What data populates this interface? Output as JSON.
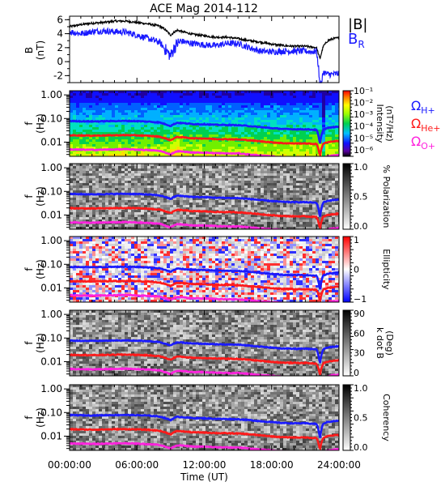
{
  "chart_data": [
    {
      "type": "line",
      "title": "ACE Mag 2014-112",
      "ylabel": "B",
      "yunit": "(nT)",
      "ylim": [
        -3,
        6.5
      ],
      "yticks": [
        "6",
        "4",
        "2",
        "0",
        "-2"
      ],
      "series": [
        {
          "name": "|B|",
          "color": "#000000",
          "x": [
            0,
            1,
            2,
            3,
            4,
            5,
            6,
            7,
            8,
            8.5,
            9,
            9.3,
            9.6,
            10,
            11,
            12,
            13,
            14,
            15,
            16,
            17,
            18,
            19,
            20,
            21,
            21.5,
            22,
            22.3,
            22.6,
            23,
            23.5,
            24
          ],
          "y": [
            5.0,
            5.3,
            5.5,
            5.6,
            5.8,
            5.8,
            5.6,
            5.4,
            5.1,
            4.6,
            3.8,
            4.2,
            4.5,
            4.3,
            3.9,
            3.7,
            3.5,
            3.5,
            3.3,
            3.0,
            2.8,
            2.5,
            2.3,
            2.2,
            2.2,
            2.1,
            2.0,
            0.4,
            2.2,
            3.0,
            3.3,
            3.4
          ]
        },
        {
          "name": "B_R",
          "color": "#1a1aff",
          "x": [
            0,
            1,
            2,
            3,
            4,
            5,
            6,
            7,
            8,
            8.5,
            9,
            9.3,
            9.6,
            10,
            11,
            12,
            13,
            14,
            15,
            16,
            17,
            18,
            19,
            20,
            21,
            21.5,
            22,
            22.3,
            22.6,
            23,
            23.5,
            24
          ],
          "y": [
            4.3,
            4.0,
            4.3,
            4.4,
            4.3,
            4.2,
            3.8,
            3.3,
            2.8,
            1.8,
            0.8,
            1.9,
            2.6,
            2.9,
            2.6,
            2.4,
            2.3,
            2.6,
            2.6,
            2.0,
            1.5,
            1.4,
            1.5,
            1.5,
            1.5,
            1.4,
            1.5,
            -2.5,
            -1.5,
            -1.8,
            -1.8,
            -1.7
          ]
        }
      ]
    },
    {
      "type": "heatmap",
      "ylabel": "f",
      "yunit": "(Hz)",
      "yticks": [
        "1.00",
        "0.10",
        "0.01"
      ],
      "colorbar": {
        "label": "Intensity",
        "unit": "(nT²/Hz)",
        "scale": "log",
        "ticks": [
          "10⁻¹",
          "10⁻²",
          "10⁻³",
          "10⁻⁴",
          "10⁻⁵",
          "10⁻⁶"
        ]
      }
    },
    {
      "type": "heatmap",
      "ylabel": "f",
      "yunit": "(Hz)",
      "yticks": [
        "1.00",
        "0.10",
        "0.01"
      ],
      "colorbar": {
        "label": "% Polarization",
        "unit": "",
        "ticks": [
          "1.0",
          "0.5",
          "0.0"
        ]
      }
    },
    {
      "type": "heatmap",
      "ylabel": "f",
      "yunit": "(Hz)",
      "yticks": [
        "1.00",
        "0.10",
        "0.01"
      ],
      "colorbar": {
        "label": "Ellipticity",
        "unit": "",
        "ticks": [
          "1",
          "0",
          "−1"
        ]
      }
    },
    {
      "type": "heatmap",
      "ylabel": "f",
      "yunit": "(Hz)",
      "yticks": [
        "1.00",
        "0.10",
        "0.01"
      ],
      "colorbar": {
        "label": "k dot B",
        "unit": "(Deg)",
        "ticks": [
          "90",
          "60",
          "30",
          "0"
        ]
      }
    },
    {
      "type": "heatmap",
      "ylabel": "f",
      "yunit": "(Hz)",
      "yticks": [
        "1.00",
        "0.10",
        "0.01"
      ],
      "colorbar": {
        "label": "Coherency",
        "unit": "",
        "ticks": [
          "1.0",
          "0.5",
          "0.0"
        ]
      }
    }
  ],
  "legend": {
    "top": [
      {
        "label": "|B|",
        "sub": "",
        "color": "#000000"
      },
      {
        "label": "B",
        "sub": "R",
        "color": "#1a1aff"
      }
    ],
    "gyro": [
      {
        "label": "Ω",
        "sub": "H+",
        "color": "#1a1aff"
      },
      {
        "label": "Ω",
        "sub": "He+",
        "color": "#ff1a1a"
      },
      {
        "label": "Ω",
        "sub": "O+",
        "color": "#ff22dd"
      }
    ]
  },
  "gyrofrequency_lines": {
    "x": [
      0,
      2,
      4,
      5,
      6,
      7,
      8,
      8.5,
      9,
      9.3,
      9.6,
      10,
      11,
      12,
      13,
      14,
      15,
      16,
      17,
      18,
      19,
      20,
      21,
      21.5,
      22,
      22.3,
      22.6,
      23,
      23.5,
      24
    ],
    "H+": [
      0.078,
      0.075,
      0.078,
      0.079,
      0.077,
      0.074,
      0.068,
      0.058,
      0.048,
      0.058,
      0.066,
      0.064,
      0.058,
      0.057,
      0.054,
      0.053,
      0.052,
      0.048,
      0.043,
      0.039,
      0.036,
      0.035,
      0.035,
      0.034,
      0.033,
      0.007,
      0.034,
      0.04,
      0.043,
      0.045
    ],
    "He+": [
      0.0195,
      0.0188,
      0.0195,
      0.0198,
      0.0193,
      0.0185,
      0.017,
      0.0145,
      0.012,
      0.0145,
      0.0165,
      0.016,
      0.0145,
      0.0143,
      0.0135,
      0.0133,
      0.013,
      0.012,
      0.0108,
      0.0098,
      0.009,
      0.0088,
      0.0088,
      0.0085,
      0.0083,
      0.0025,
      0.0085,
      0.01,
      0.0108,
      0.0113
    ],
    "O+": [
      0.0049,
      0.0047,
      0.0049,
      0.005,
      0.0048,
      0.0046,
      0.0043,
      0.0036,
      0.003,
      0.0036,
      0.0041,
      0.004,
      0.0036,
      0.0036,
      0.0034,
      0.0033,
      0.0033,
      0.003,
      0.0027,
      0.0025,
      0.0023,
      0.0022,
      0.0022,
      0.0021,
      0.0021,
      0.001,
      0.0021,
      0.0025,
      0.0027,
      0.0028
    ]
  },
  "x_axis": {
    "label": "Time (UT)",
    "ticks": [
      "00:00:00",
      "06:00:00",
      "12:00:00",
      "18:00:00",
      "24:00:00"
    ],
    "tick_hours": [
      0,
      6,
      12,
      18,
      24
    ],
    "range_hours": [
      0,
      24
    ]
  }
}
